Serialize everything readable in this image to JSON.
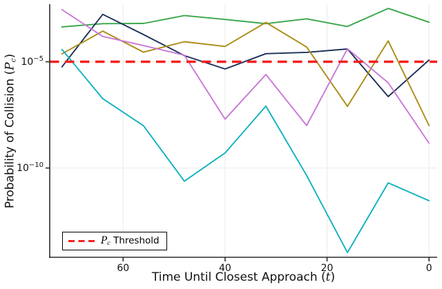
{
  "chart_data": {
    "type": "line",
    "title": "",
    "xlabel": {
      "prefix": "Time Until Closest Approach (",
      "symbol": "t",
      "suffix": ")"
    },
    "ylabel": {
      "prefix": "Probability of Collision (",
      "symbol": "P",
      "symbol_sub": "c",
      "suffix": ")"
    },
    "x_axis_reversed": true,
    "y_axis_scale": "log10",
    "x": [
      72,
      64,
      56,
      48,
      40,
      32,
      24,
      16,
      8,
      0
    ],
    "xticks": [
      {
        "value": 60,
        "label": "60"
      },
      {
        "value": 40,
        "label": "40"
      },
      {
        "value": 20,
        "label": "20"
      },
      {
        "value": 0,
        "label": "0"
      }
    ],
    "yticks": [
      {
        "log": -5,
        "base": "10",
        "exp": "−5"
      },
      {
        "log": -10,
        "base": "10",
        "exp": "−10"
      }
    ],
    "xlim": [
      74.4,
      -1.6
    ],
    "ylim_log": [
      -14.2,
      -2.29
    ],
    "grid": true,
    "colors": {
      "grid": "#ebebeb",
      "spine": "#2b2b2b",
      "text": "#111111"
    },
    "series": [
      {
        "name": "green-line",
        "color": "#3aa64a",
        "log10_values": [
          -3.36,
          -3.21,
          -3.2,
          -2.83,
          -3.01,
          -3.21,
          -2.98,
          -3.34,
          -2.49,
          -3.14
        ]
      },
      {
        "name": "navy-line",
        "color": "#1c2f5a",
        "log10_values": [
          -5.24,
          -2.77,
          -3.72,
          -4.71,
          -5.34,
          -4.62,
          -4.56,
          -4.4,
          -6.64,
          -4.92
        ]
      },
      {
        "name": "gold-line",
        "color": "#ab8c15",
        "log10_values": [
          -4.63,
          -3.56,
          -4.55,
          -4.06,
          -4.28,
          -3.15,
          -4.31,
          -7.1,
          -4.02,
          -8.0
        ]
      },
      {
        "name": "magenta-line",
        "color": "#c978d6",
        "log10_values": [
          -2.55,
          -3.81,
          -4.24,
          -4.69,
          -7.7,
          -5.6,
          -8.0,
          -4.39,
          -5.99,
          -8.83
        ]
      },
      {
        "name": "cyan-line",
        "color": "#11b2bf",
        "log10_values": [
          -4.42,
          -6.74,
          -8.01,
          -10.62,
          -9.29,
          -7.09,
          -10.35,
          -13.98,
          -10.7,
          -11.54
        ]
      }
    ],
    "threshold": {
      "log10_value": -5,
      "color": "#f51f1f",
      "style": "dashed"
    },
    "legend": {
      "symbol": "P",
      "symbol_sub": "c",
      "suffix": " Threshold"
    }
  }
}
